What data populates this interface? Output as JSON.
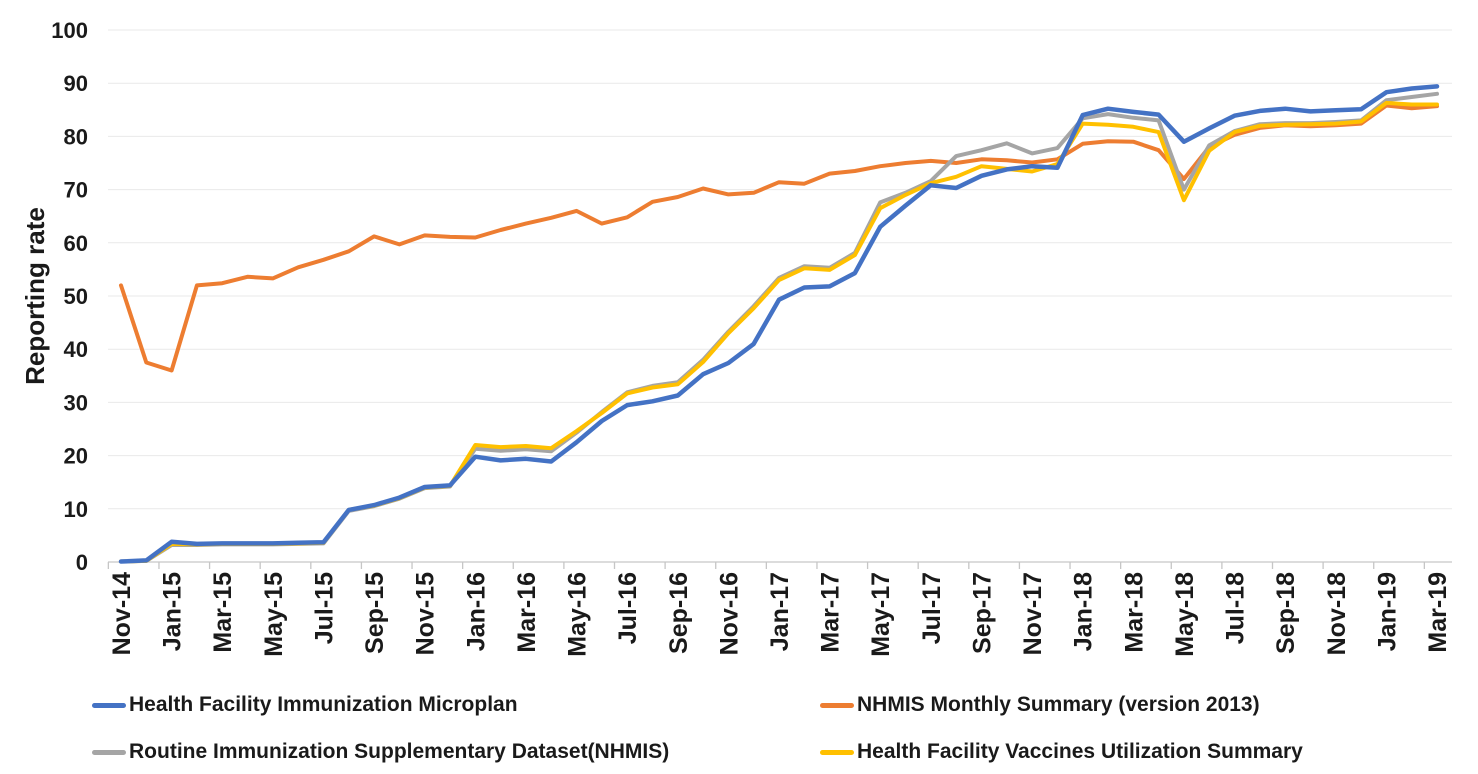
{
  "chart_data": {
    "type": "line",
    "title": "",
    "xlabel": "",
    "ylabel": "Reporting rate",
    "ylim": [
      0,
      100
    ],
    "y_ticks": [
      0,
      10,
      20,
      30,
      40,
      50,
      60,
      70,
      80,
      90,
      100
    ],
    "x_label_interval": 2,
    "grid": "horizontal",
    "legend_position": "bottom",
    "categories": [
      "Nov-14",
      "Dec-14",
      "Jan-15",
      "Feb-15",
      "Mar-15",
      "Apr-15",
      "May-15",
      "Jun-15",
      "Jul-15",
      "Aug-15",
      "Sep-15",
      "Oct-15",
      "Nov-15",
      "Dec-15",
      "Jan-16",
      "Feb-16",
      "Mar-16",
      "Apr-16",
      "May-16",
      "Jun-16",
      "Jul-16",
      "Aug-16",
      "Sep-16",
      "Oct-16",
      "Nov-16",
      "Dec-16",
      "Jan-17",
      "Feb-17",
      "Mar-17",
      "Apr-17",
      "May-17",
      "Jun-17",
      "Jul-17",
      "Aug-17",
      "Sep-17",
      "Oct-17",
      "Nov-17",
      "Dec-17",
      "Jan-18",
      "Feb-18",
      "Mar-18",
      "Apr-18",
      "May-18",
      "Jun-18",
      "Jul-18",
      "Aug-18",
      "Sep-18",
      "Oct-18",
      "Nov-18",
      "Dec-18",
      "Jan-19",
      "Feb-19",
      "Mar-19"
    ],
    "series": [
      {
        "name": "Health Facility Immunization Microplan",
        "color": "#4472C4",
        "values": [
          0.1,
          0.3,
          3.8,
          3.4,
          3.5,
          3.5,
          3.5,
          3.6,
          3.7,
          9.8,
          10.7,
          12.1,
          14.1,
          14.4,
          19.8,
          19.1,
          19.4,
          18.9,
          22.5,
          26.5,
          29.5,
          30.2,
          31.3,
          35.3,
          37.4,
          41.0,
          49.3,
          51.6,
          51.8,
          54.3,
          63.0,
          67.0,
          70.8,
          70.3,
          72.6,
          73.8,
          74.4,
          74.1,
          84.0,
          85.2,
          84.6,
          84.1,
          79.0,
          81.5,
          83.9,
          84.8,
          85.2,
          84.7,
          84.9,
          85.1,
          88.3,
          89.0,
          89.4
        ]
      },
      {
        "name": "NHMIS Monthly Summary (version 2013)",
        "color": "#ED7D31",
        "values": [
          52.0,
          37.5,
          36.0,
          52.0,
          52.4,
          53.6,
          53.3,
          55.4,
          56.8,
          58.4,
          61.2,
          59.7,
          61.4,
          61.1,
          61.0,
          62.4,
          63.6,
          64.7,
          66.0,
          63.6,
          64.8,
          67.7,
          68.6,
          70.2,
          69.1,
          69.4,
          71.4,
          71.1,
          73.0,
          73.5,
          74.4,
          75.0,
          75.4,
          75.0,
          75.7,
          75.5,
          75.1,
          75.7,
          78.6,
          79.1,
          79.0,
          77.4,
          72.0,
          78.0,
          80.3,
          81.6,
          82.1,
          81.9,
          82.1,
          82.4,
          85.8,
          85.3,
          85.7
        ]
      },
      {
        "name": "Routine Immunization Supplementary Dataset(NHMIS)",
        "color": "#A5A5A5",
        "values": [
          0.1,
          0.2,
          3.2,
          3.2,
          3.3,
          3.3,
          3.3,
          3.4,
          3.5,
          9.6,
          10.5,
          11.9,
          13.9,
          14.2,
          21.3,
          20.9,
          21.2,
          20.8,
          24.3,
          28.2,
          31.9,
          33.1,
          33.8,
          38.0,
          43.3,
          48.1,
          53.4,
          55.6,
          55.3,
          58.1,
          67.6,
          69.4,
          71.6,
          76.3,
          77.4,
          78.7,
          76.8,
          77.8,
          83.4,
          84.2,
          83.5,
          83.0,
          70.0,
          78.3,
          81.0,
          82.3,
          82.5,
          82.5,
          82.7,
          83.0,
          86.8,
          87.4,
          88.0
        ]
      },
      {
        "name": "Health Facility Vaccines Utilization Summary",
        "color": "#FFC000",
        "values": [
          0.1,
          0.2,
          3.4,
          3.3,
          3.4,
          3.4,
          3.4,
          3.5,
          3.6,
          9.8,
          10.6,
          12.0,
          14.0,
          14.3,
          22.0,
          21.6,
          21.8,
          21.4,
          24.6,
          28.0,
          31.7,
          32.8,
          33.4,
          37.6,
          43.0,
          47.7,
          53.0,
          55.2,
          54.9,
          57.7,
          66.5,
          69.0,
          71.2,
          72.4,
          74.4,
          73.9,
          73.4,
          74.8,
          82.4,
          82.2,
          81.8,
          80.8,
          68.0,
          77.3,
          80.8,
          82.0,
          82.2,
          82.3,
          82.4,
          82.8,
          86.3,
          86.0,
          86.0
        ]
      }
    ]
  }
}
